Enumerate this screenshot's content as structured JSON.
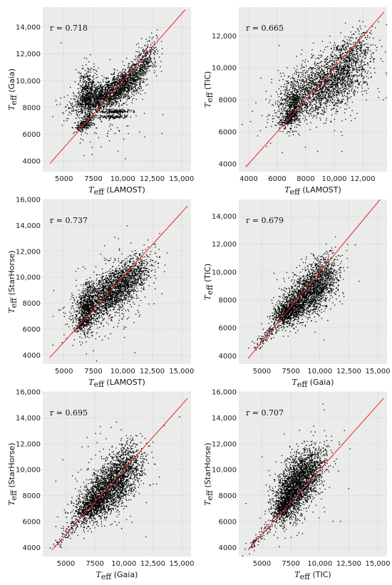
{
  "chart_data": [
    {
      "type": "scatter",
      "annotation": "r = 0.718",
      "xlabel": {
        "symbol": "T",
        "sub": "eff",
        "suffix": "(LAMOST)"
      },
      "ylabel": {
        "symbol": "T",
        "sub": "eff",
        "suffix": "(Gaia)"
      },
      "xlim": [
        3200,
        15800
      ],
      "ylim": [
        3200,
        15500
      ],
      "xticks": [
        5000,
        7500,
        10000,
        12500,
        15000
      ],
      "xtick_labels": [
        "5000",
        "7500",
        "10,000",
        "12,500",
        "15,000"
      ],
      "yticks": [
        4000,
        6000,
        8000,
        10000,
        12000,
        14000
      ],
      "ytick_labels": [
        "4000",
        "6000",
        "8000",
        "10,000",
        "12,000",
        "14,000"
      ],
      "identity_line": [
        [
          3800,
          3800
        ],
        [
          15300,
          15300
        ]
      ],
      "point_color": "#000000",
      "line_color": "#e8251f",
      "grid": true,
      "background": "#ebebeb",
      "clusters": [
        {
          "cx": 8500,
          "cy": 8900,
          "sx": 1400,
          "sy": 700,
          "n": 1400,
          "rho": 0.6
        },
        {
          "cx": 7000,
          "cy": 9100,
          "sx": 400,
          "sy": 900,
          "n": 450,
          "rho": 0.0
        },
        {
          "cx": 10600,
          "cy": 10200,
          "sx": 900,
          "sy": 700,
          "n": 700,
          "rho": 0.7
        },
        {
          "cx": 12000,
          "cy": 11800,
          "sx": 500,
          "sy": 700,
          "n": 200,
          "rho": 0.5
        },
        {
          "cx": 6800,
          "cy": 6800,
          "sx": 400,
          "sy": 300,
          "n": 250,
          "rho": 0.6
        },
        {
          "cx": 9400,
          "cy": 7700,
          "sx": 700,
          "sy": 80,
          "n": 150,
          "rho": 0.0
        },
        {
          "cx": 9300,
          "cy": 7300,
          "sx": 600,
          "sy": 60,
          "n": 100,
          "rho": 0.0
        },
        {
          "cx": 8400,
          "cy": 7900,
          "sx": 1800,
          "sy": 2000,
          "n": 120,
          "rho": 0.2
        }
      ]
    },
    {
      "type": "scatter",
      "annotation": "r = 0.665",
      "xlabel": {
        "symbol": "T",
        "sub": "eff",
        "suffix": "(LAMOST)"
      },
      "ylabel": {
        "symbol": "T",
        "sub": "eff",
        "suffix": "(TIC)"
      },
      "xlim": [
        3300,
        13700
      ],
      "ylim": [
        3500,
        13800
      ],
      "xticks": [
        4000,
        6000,
        8000,
        10000,
        12000
      ],
      "xtick_labels": [
        "4000",
        "6000",
        "8000",
        "10,000",
        "12,000"
      ],
      "yticks": [
        4000,
        6000,
        8000,
        10000,
        12000
      ],
      "ytick_labels": [
        "4000",
        "6000",
        "8000",
        "10,000",
        "12,000"
      ],
      "identity_line": [
        [
          3800,
          3800
        ],
        [
          13500,
          13500
        ]
      ],
      "point_color": "#000000",
      "line_color": "#e8251f",
      "grid": true,
      "background": "#ebebeb",
      "clusters": [
        {
          "cx": 9300,
          "cy": 8900,
          "sx": 1500,
          "sy": 1000,
          "n": 1800,
          "rho": 0.5
        },
        {
          "cx": 7100,
          "cy": 7800,
          "sx": 450,
          "sy": 700,
          "n": 500,
          "rho": 0.2
        },
        {
          "cx": 11000,
          "cy": 10700,
          "sx": 800,
          "sy": 900,
          "n": 500,
          "rho": 0.5
        },
        {
          "cx": 6800,
          "cy": 6800,
          "sx": 350,
          "sy": 300,
          "n": 200,
          "rho": 0.6
        },
        {
          "cx": 9000,
          "cy": 8500,
          "sx": 2200,
          "sy": 2000,
          "n": 120,
          "rho": 0.2
        }
      ]
    },
    {
      "type": "scatter",
      "annotation": "r = 0.737",
      "xlabel": {
        "symbol": "T",
        "sub": "eff",
        "suffix": "(LAMOST)"
      },
      "ylabel": {
        "symbol": "T",
        "sub": "eff",
        "suffix": "(StarHorse)"
      },
      "xlim": [
        3200,
        15800
      ],
      "ylim": [
        3300,
        16000
      ],
      "xticks": [
        5000,
        7500,
        10000,
        12500,
        15000
      ],
      "xtick_labels": [
        "5000",
        "7500",
        "10,000",
        "12,500",
        "15,000"
      ],
      "yticks": [
        4000,
        6000,
        8000,
        10000,
        12000,
        14000,
        16000
      ],
      "ytick_labels": [
        "4000",
        "6000",
        "8000",
        "10,000",
        "12,000",
        "14,000",
        "16,000"
      ],
      "identity_line": [
        [
          3800,
          3800
        ],
        [
          15500,
          15500
        ]
      ],
      "point_color": "#000000",
      "line_color": "#e8251f",
      "grid": true,
      "background": "#ebebeb",
      "clusters": [
        {
          "cx": 8800,
          "cy": 8700,
          "sx": 1400,
          "sy": 1100,
          "n": 1800,
          "rho": 0.6
        },
        {
          "cx": 6900,
          "cy": 7500,
          "sx": 350,
          "sy": 900,
          "n": 500,
          "rho": 0.1
        },
        {
          "cx": 10800,
          "cy": 10200,
          "sx": 900,
          "sy": 900,
          "n": 500,
          "rho": 0.5
        },
        {
          "cx": 6500,
          "cy": 6400,
          "sx": 300,
          "sy": 300,
          "n": 150,
          "rho": 0.6
        },
        {
          "cx": 9000,
          "cy": 8500,
          "sx": 2000,
          "sy": 2200,
          "n": 120,
          "rho": 0.2
        }
      ]
    },
    {
      "type": "scatter",
      "annotation": "r = 0.679",
      "xlabel": {
        "symbol": "T",
        "sub": "eff",
        "suffix": "(Gaia)"
      },
      "ylabel": {
        "symbol": "T",
        "sub": "eff",
        "suffix": "(TIC)"
      },
      "xlim": [
        3000,
        15800
      ],
      "ylim": [
        3400,
        15200
      ],
      "xticks": [
        5000,
        7500,
        10000,
        12500,
        15000
      ],
      "xtick_labels": [
        "5000",
        "7500",
        "10,000",
        "12,500",
        "15,000"
      ],
      "yticks": [
        4000,
        6000,
        8000,
        10000,
        12000,
        14000
      ],
      "ytick_labels": [
        "4000",
        "6000",
        "8000",
        "10,000",
        "12,000",
        "14,000"
      ],
      "identity_line": [
        [
          3800,
          3800
        ],
        [
          15300,
          15300
        ]
      ],
      "point_color": "#000000",
      "line_color": "#e8251f",
      "grid": true,
      "background": "#ebebeb",
      "clusters": [
        {
          "cx": 8800,
          "cy": 8300,
          "sx": 1200,
          "sy": 1000,
          "n": 1600,
          "rho": 0.6
        },
        {
          "cx": 7200,
          "cy": 7100,
          "sx": 600,
          "sy": 400,
          "n": 600,
          "rho": 0.5
        },
        {
          "cx": 10000,
          "cy": 9600,
          "sx": 800,
          "sy": 900,
          "n": 500,
          "rho": 0.4
        },
        {
          "cx": 5600,
          "cy": 5600,
          "sx": 700,
          "sy": 600,
          "n": 120,
          "rho": 0.9
        },
        {
          "cx": 9000,
          "cy": 8500,
          "sx": 1800,
          "sy": 1600,
          "n": 100,
          "rho": 0.3
        }
      ]
    },
    {
      "type": "scatter",
      "annotation": "r = 0.695",
      "xlabel": {
        "symbol": "T",
        "sub": "eff",
        "suffix": "(Gaia)"
      },
      "ylabel": {
        "symbol": "T",
        "sub": "eff",
        "suffix": "(StarHorse)"
      },
      "xlim": [
        3000,
        15800
      ],
      "ylim": [
        3300,
        16000
      ],
      "xticks": [
        5000,
        7500,
        10000,
        12500,
        15000
      ],
      "xtick_labels": [
        "5000",
        "7500",
        "10,000",
        "12,500",
        "15,000"
      ],
      "yticks": [
        4000,
        6000,
        8000,
        10000,
        12000,
        14000,
        16000
      ],
      "ytick_labels": [
        "4000",
        "6000",
        "8000",
        "10,000",
        "12,000",
        "14,000",
        "16,000"
      ],
      "identity_line": [
        [
          3800,
          3800
        ],
        [
          15500,
          15500
        ]
      ],
      "point_color": "#000000",
      "line_color": "#e8251f",
      "grid": true,
      "background": "#ebebeb",
      "clusters": [
        {
          "cx": 8700,
          "cy": 8500,
          "sx": 1300,
          "sy": 1200,
          "n": 1800,
          "rho": 0.6
        },
        {
          "cx": 7300,
          "cy": 7300,
          "sx": 700,
          "sy": 600,
          "n": 600,
          "rho": 0.5
        },
        {
          "cx": 10000,
          "cy": 10200,
          "sx": 900,
          "sy": 1000,
          "n": 500,
          "rho": 0.4
        },
        {
          "cx": 5300,
          "cy": 5300,
          "sx": 700,
          "sy": 700,
          "n": 100,
          "rho": 0.9
        },
        {
          "cx": 9000,
          "cy": 9000,
          "sx": 2000,
          "sy": 2000,
          "n": 120,
          "rho": 0.3
        }
      ]
    },
    {
      "type": "scatter",
      "annotation": "r = 0.707",
      "xlabel": {
        "symbol": "T",
        "sub": "eff",
        "suffix": "(TIC)"
      },
      "ylabel": {
        "symbol": "T",
        "sub": "eff",
        "suffix": "(StarHorse)"
      },
      "xlim": [
        3000,
        15800
      ],
      "ylim": [
        3300,
        16000
      ],
      "xticks": [
        5000,
        7500,
        10000,
        12500,
        15000
      ],
      "xtick_labels": [
        "5000",
        "7500",
        "10,000",
        "12,500",
        "15,000"
      ],
      "yticks": [
        4000,
        6000,
        8000,
        10000,
        12000,
        14000,
        16000
      ],
      "ytick_labels": [
        "4000",
        "6000",
        "8000",
        "10,000",
        "12,000",
        "14,000",
        "16,000"
      ],
      "identity_line": [
        [
          3800,
          3800
        ],
        [
          15500,
          15500
        ]
      ],
      "point_color": "#000000",
      "line_color": "#e8251f",
      "grid": true,
      "background": "#ebebeb",
      "clusters": [
        {
          "cx": 7900,
          "cy": 8700,
          "sx": 900,
          "sy": 1300,
          "n": 1800,
          "rho": 0.5
        },
        {
          "cx": 7000,
          "cy": 7300,
          "sx": 500,
          "sy": 600,
          "n": 500,
          "rho": 0.5
        },
        {
          "cx": 9200,
          "cy": 10000,
          "sx": 800,
          "sy": 900,
          "n": 500,
          "rho": 0.4
        },
        {
          "cx": 5000,
          "cy": 5000,
          "sx": 600,
          "sy": 600,
          "n": 80,
          "rho": 0.9
        },
        {
          "cx": 8500,
          "cy": 9000,
          "sx": 1600,
          "sy": 2200,
          "n": 120,
          "rho": 0.3
        }
      ]
    }
  ]
}
